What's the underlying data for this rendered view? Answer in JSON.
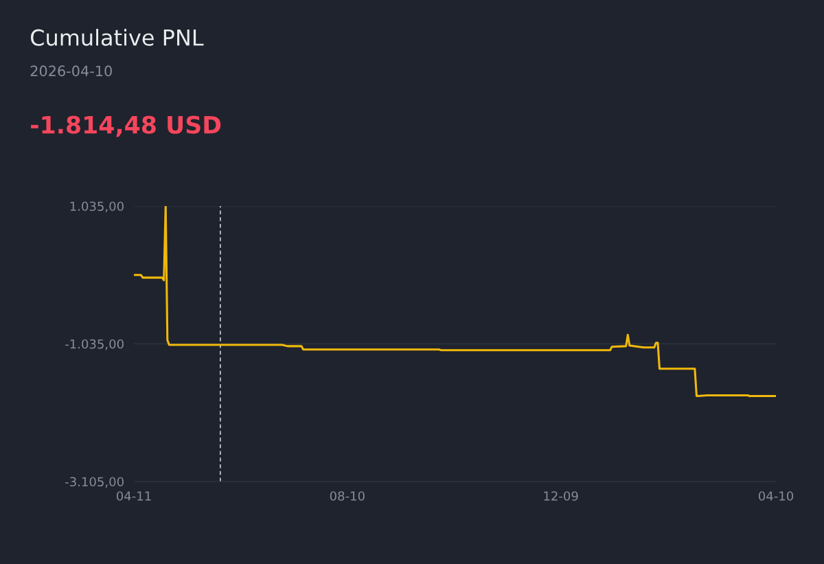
{
  "chart_data": {
    "type": "line",
    "title": "Cumulative PNL",
    "subtitle": "2026-04-10",
    "annotations": [
      "-1.814,48 USD"
    ],
    "x": [
      "2025-04-11",
      "2025-04-15",
      "2025-04-16",
      "2025-04-27",
      "2025-04-28",
      "2025-04-29",
      "2025-04-30",
      "2025-05-01",
      "2025-07-04",
      "2025-07-07",
      "2025-07-15",
      "2025-07-16",
      "2025-10-01",
      "2025-10-02",
      "2026-01-06",
      "2026-01-07",
      "2026-01-15",
      "2026-01-16",
      "2026-01-17",
      "2026-01-25",
      "2026-01-31",
      "2026-02-01",
      "2026-02-02",
      "2026-02-03",
      "2026-02-23",
      "2026-02-24",
      "2026-03-02",
      "2026-03-25",
      "2026-03-26",
      "2026-04-10"
    ],
    "series": [
      {
        "color": "#f0b90b",
        "values": [
          0,
          0,
          -40,
          -40,
          -80,
          1035,
          -980,
          -1050,
          -1050,
          -1070,
          -1070,
          -1120,
          -1120,
          -1130,
          -1130,
          -1080,
          -1070,
          -900,
          -1060,
          -1090,
          -1090,
          -1020,
          -1020,
          -1410,
          -1410,
          -1820,
          -1810,
          -1810,
          -1820,
          -1820
        ]
      }
    ],
    "xlim": [
      "2025-04-11",
      "2026-04-10"
    ],
    "xticks": [
      {
        "value": "2025-04-11",
        "label": "04-11"
      },
      {
        "value": "2025-08-10",
        "label": "08-10"
      },
      {
        "value": "2025-12-09",
        "label": "12-09"
      },
      {
        "value": "2026-04-10",
        "label": "04-10"
      }
    ],
    "ylim": [
      -3105,
      1035
    ],
    "yticks": [
      {
        "value": 1035,
        "label": "1.035,00"
      },
      {
        "value": -1035,
        "label": "-1.035,00"
      },
      {
        "value": -3105,
        "label": "-3.105,00"
      }
    ],
    "ref_lines": [
      {
        "axis": "x",
        "value": "2025-05-30",
        "color": "#eaecef",
        "line_style": "dashed"
      }
    ],
    "grid": "y",
    "legend": false,
    "marker": "none",
    "line_style": "solid"
  }
}
